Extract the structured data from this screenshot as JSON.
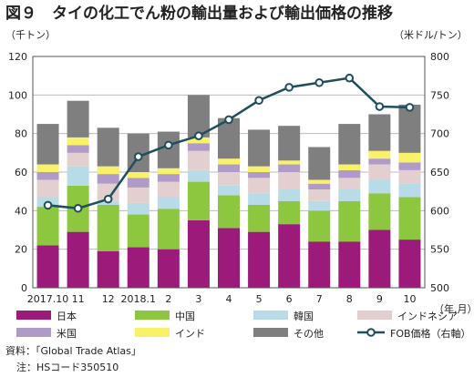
{
  "figure": {
    "title": "図９　タイの化工でん粉の輸出量および輸出価格の推移",
    "left_unit": "（千トン）",
    "right_unit": "（米ドル/トン）",
    "x_unit": "（年.月）",
    "source": "資料：「Global Trade Atlas」",
    "note": "注：HSコード350510"
  },
  "chart_data": {
    "type": "bar",
    "stacked": true,
    "categories": [
      "2017.10",
      "11",
      "12",
      "2018.1",
      "2",
      "3",
      "4",
      "5",
      "6",
      "7",
      "8",
      "9",
      "10"
    ],
    "series": [
      {
        "name": "日本",
        "color": "#9b1a7a",
        "values": [
          22,
          29,
          19,
          21,
          20,
          35,
          31,
          29,
          33,
          24,
          24,
          30,
          25
        ]
      },
      {
        "name": "中国",
        "color": "#8dc63f",
        "values": [
          20,
          24,
          24,
          17,
          21,
          20,
          17,
          14,
          12,
          16,
          21,
          19,
          22
        ]
      },
      {
        "name": "韓国",
        "color": "#b8dbe8",
        "values": [
          5,
          10,
          2,
          6,
          6,
          6,
          5,
          6,
          6,
          5,
          6,
          7,
          7
        ]
      },
      {
        "name": "インドネシア",
        "color": "#e3cfcf",
        "values": [
          9,
          7,
          9,
          8,
          8,
          10,
          7,
          8,
          9,
          6,
          6,
          8,
          7
        ]
      },
      {
        "name": "米国",
        "color": "#b09ac8",
        "values": [
          4,
          4,
          5,
          5,
          4,
          4,
          4,
          3,
          4,
          3,
          4,
          3,
          4
        ]
      },
      {
        "name": "インド",
        "color": "#f7f26a",
        "values": [
          4,
          4,
          4,
          3,
          3,
          3,
          3,
          3,
          2,
          2,
          3,
          4,
          5
        ]
      },
      {
        "name": "その他",
        "color": "#7f7f7f",
        "values": [
          21,
          19,
          20,
          20,
          19,
          22,
          21,
          19,
          18,
          17,
          21,
          19,
          25
        ]
      }
    ],
    "line": {
      "name": "FOB価格（右軸）",
      "color": "#1f4e5f",
      "values": [
        607,
        603,
        615,
        670,
        685,
        697,
        718,
        743,
        760,
        766,
        772,
        735,
        734
      ]
    },
    "y_left": {
      "min": 0,
      "max": 120,
      "step": 20
    },
    "y_right": {
      "min": 500,
      "max": 800,
      "step": 50
    },
    "grid": true,
    "legend_position": "bottom"
  }
}
